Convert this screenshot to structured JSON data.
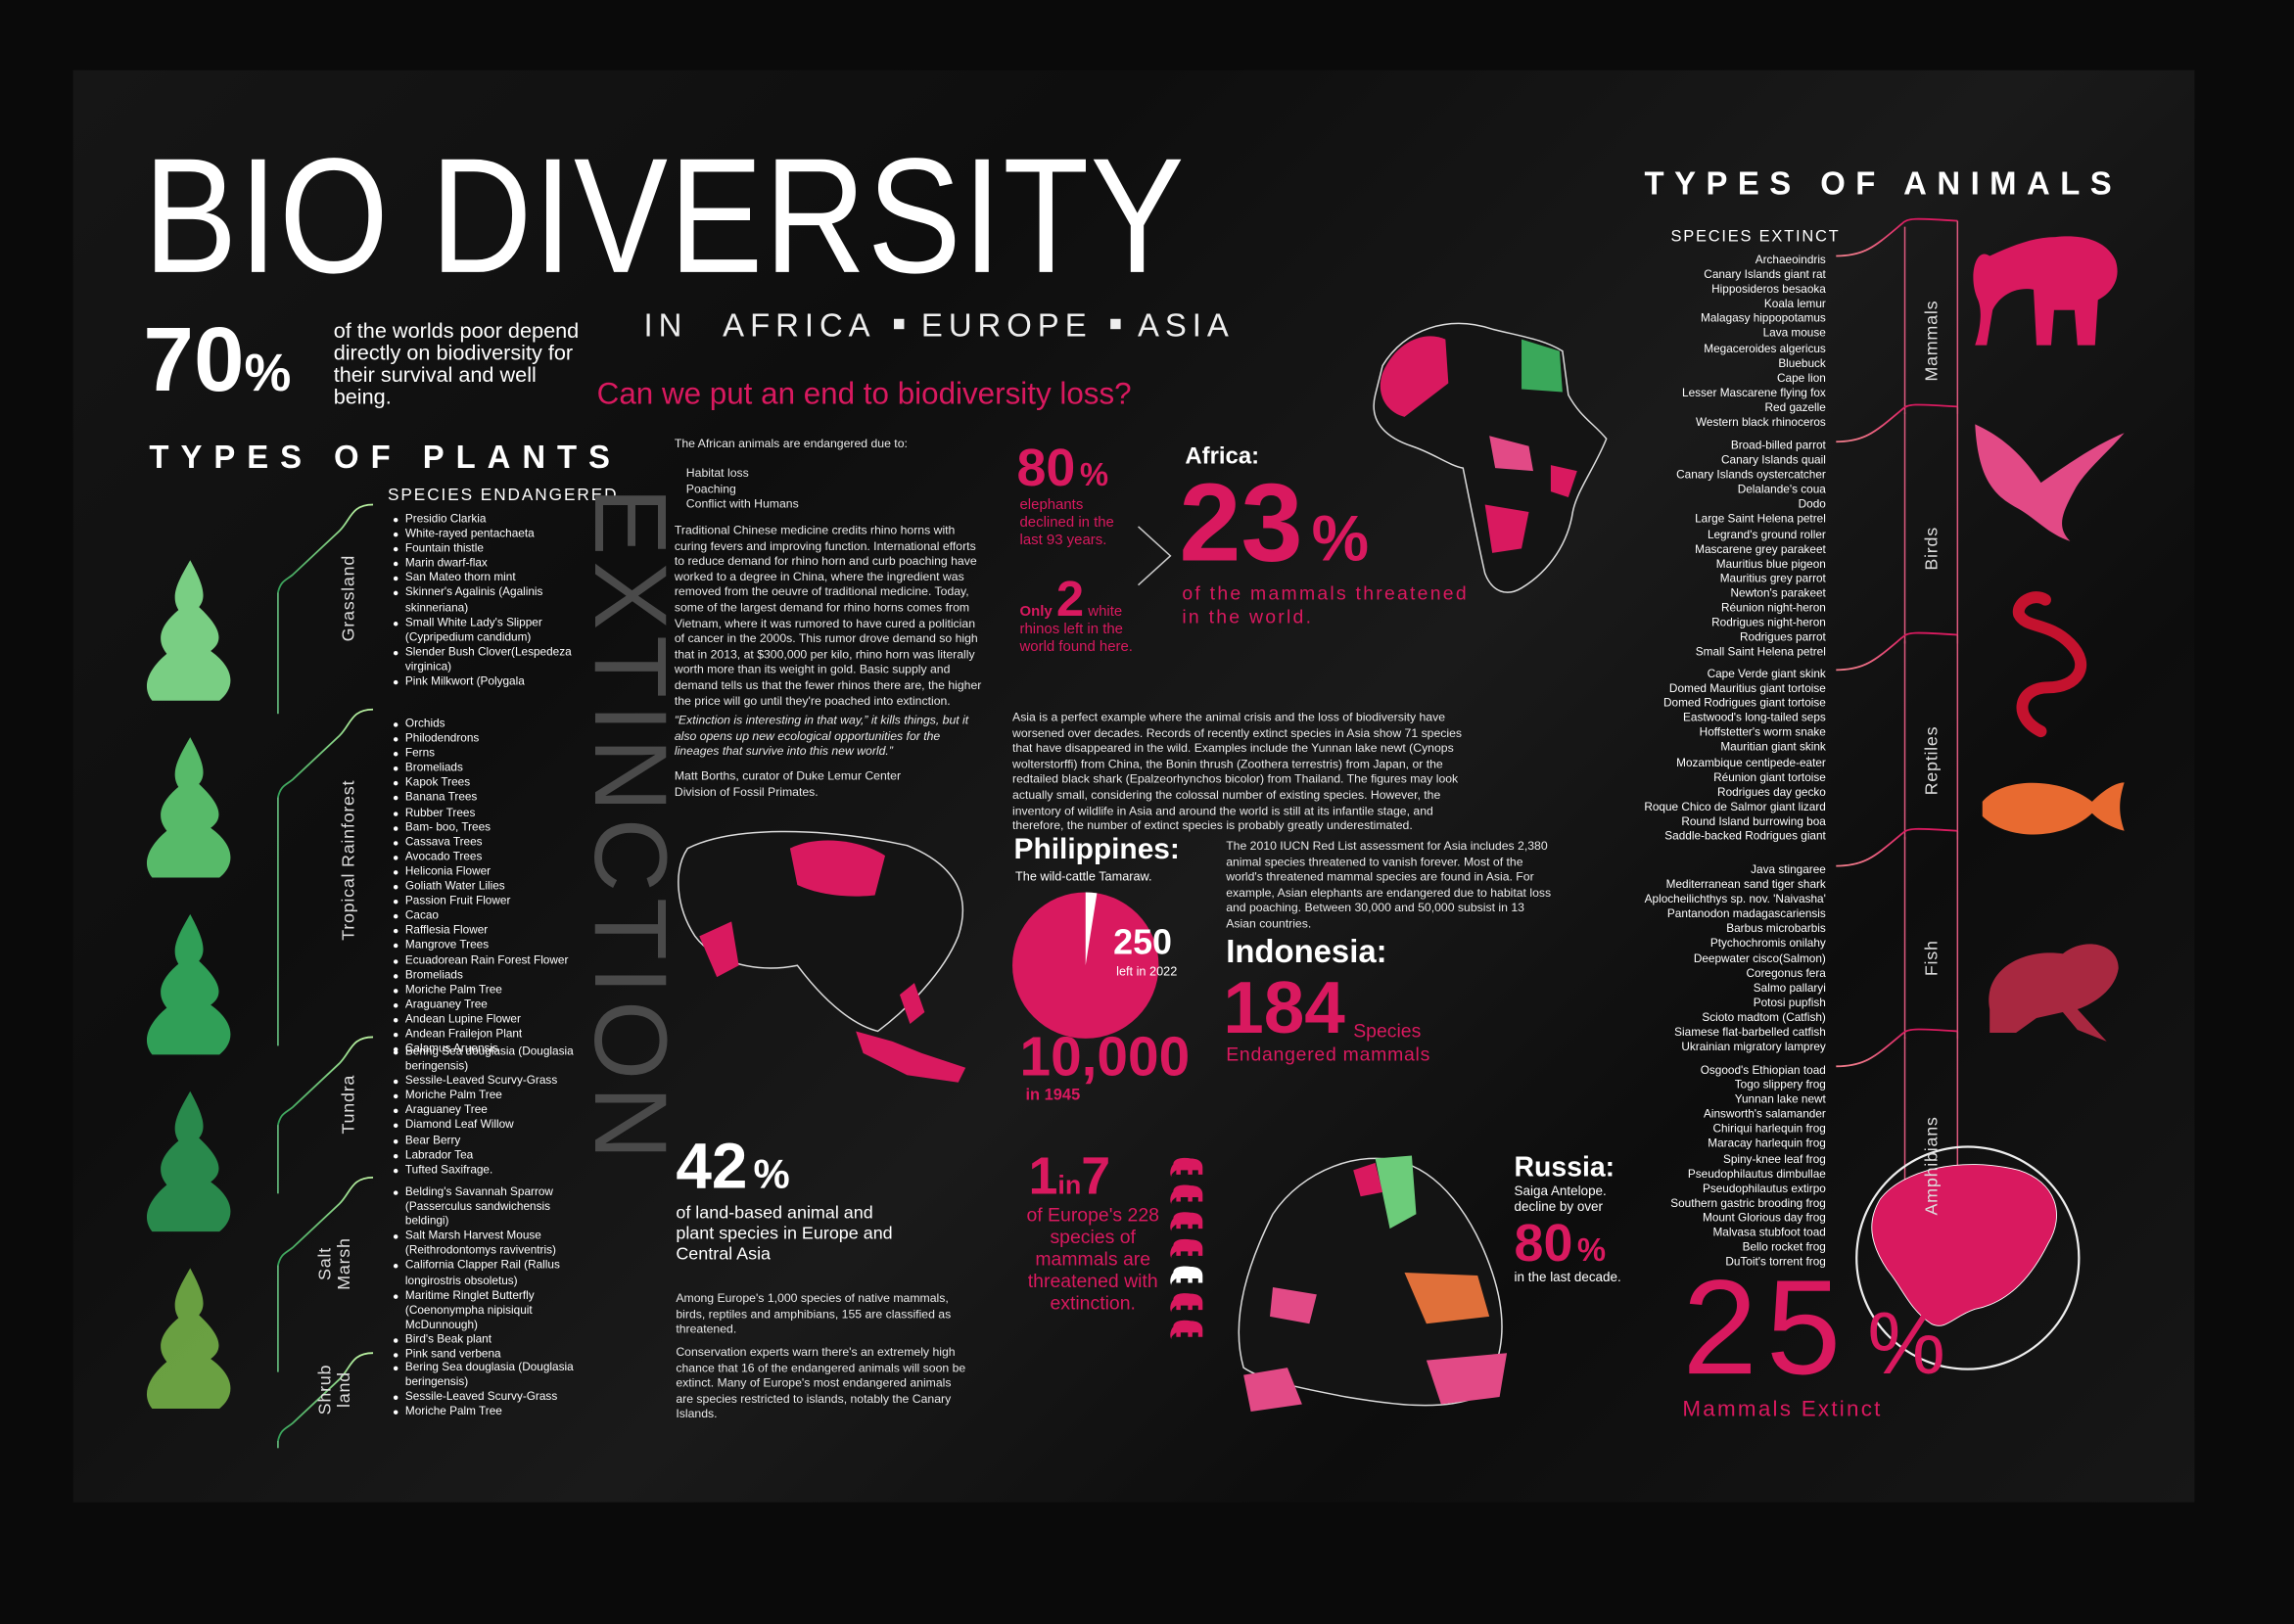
{
  "header": {
    "title": "BIO DIVERSITY",
    "subtitle_prefix": "IN",
    "regions": [
      "AFRICA",
      "EUROPE",
      "ASIA"
    ],
    "question": "Can we put an end to biodiversity loss?"
  },
  "poor_stat": {
    "value": 70,
    "unit": "%",
    "text": "of the worlds poor depend directly on biodiversity for their survival and well being."
  },
  "plants": {
    "heading": "TYPES OF PLANTS",
    "subheading": "SPECIES ENDANGERED",
    "groups": [
      {
        "name": "Grassland",
        "species": [
          "Presidio Clarkia",
          "White-rayed pentachaeta",
          "Fountain thistle",
          "Marin dwarf-flax",
          "San Mateo thorn mint",
          "Skinner's Agalinis (Agalinis skinneriana)",
          "Small White Lady's Slipper (Cypripedium candidum)",
          "Slender Bush Clover(Lespedeza virginica)",
          "Pink Milkwort (Polygala"
        ]
      },
      {
        "name": "Tropical Rainforest",
        "species": [
          "Orchids",
          "Philodendrons",
          "Ferns",
          "Bromeliads",
          "Kapok Trees",
          "Banana Trees",
          "Rubber Trees",
          "Bam- boo, Trees",
          "Cassava Trees",
          "Avocado Trees",
          "Heliconia Flower",
          "Goliath Water Lilies",
          "Passion Fruit Flower",
          "Cacao",
          "Rafflesia Flower",
          "Mangrove Trees",
          "Ecuadorean Rain Forest Flower",
          "Bromeliads",
          "Moriche Palm Tree",
          "Araguaney Tree",
          "Andean Lupine Flower",
          "Andean Frailejon Plant",
          "Calamus Aruensis"
        ]
      },
      {
        "name": "Tundra",
        "species": [
          "Bering Sea douglasia (Douglasia beringensis)",
          "Sessile-Leaved Scurvy-Grass",
          "Moriche Palm Tree",
          "Araguaney Tree",
          "Diamond Leaf Willow",
          "Bear Berry",
          "Labrador Tea",
          "Tufted Saxifrage."
        ]
      },
      {
        "name": "Salt Marsh",
        "species": [
          "Belding's Savannah Sparrow (Passerculus sandwichensis beldingi)",
          "Salt Marsh Harvest Mouse (Reithrodontomys raviventris)",
          "California Clapper Rail (Rallus longirostris obsoletus)",
          "Maritime Ringlet Butterfly (Coenonympha nipisiquit McDunnough)",
          "Bird's Beak plant",
          "Pink sand verbena"
        ]
      },
      {
        "name": "Shrub land",
        "species": [
          "Bering Sea douglasia (Douglasia beringensis)",
          "Sessile-Leaved Scurvy-Grass",
          "Moriche Palm Tree"
        ]
      }
    ]
  },
  "africa_text": {
    "intro": "The African animals are endangered due to:",
    "causes": [
      "Habitat loss",
      "Poaching",
      "Conflict with Humans"
    ],
    "paragraph": "Traditional Chinese medicine credits rhino horns with curing fevers and improving function. International efforts to reduce demand for rhino horn and curb poaching have worked to a degree in China, where the ingredient was removed from the oeuvre of traditional medicine. Today, some of the largest demand for rhino horns comes from Vietnam, where it was rumored to have cured a politician of cancer in the 2000s. This rumor drove demand so high that in 2013, at $300,000 per kilo, rhino horn was literally worth more than its weight in gold. Basic supply and demand tells us that the fewer rhinos there are, the higher the price will go until they're poached into extinction.",
    "quote": "“Extinction is interesting in that way,” it kills things, but it also opens up new ecological opportunities for the lineages that survive into this new world.”",
    "attribution": "Matt Borths, curator of Duke Lemur Center Division of Fossil Primates."
  },
  "side_word": "EXTINCTION",
  "elephants": {
    "value": 80,
    "unit": "%",
    "text": "elephants declined in the last 93 years."
  },
  "rhinos": {
    "prefix": "Only",
    "value": 2,
    "text": "white rhinos left in the world found here."
  },
  "africa": {
    "label": "Africa:",
    "value": 23,
    "unit": "%",
    "text": "of the mammals threatened in the world."
  },
  "asia": {
    "paragraph": "Asia is a perfect example where the animal crisis and the loss of biodiversity have worsened over decades. Records of recently extinct species in Asia show 71 species that have disappeared in the wild. Examples include the Yunnan lake newt (Cynops wolterstorffi) from China, the Bonin thrush (Zoothera terrestris) from Japan, or the redtailed black shark (Epalzeorhynchos bicolor) from Thailand. The figures may look actually small, considering the colossal number of existing species. However, the inventory of wildlife in Asia and around the world is still at its infantile stage, and therefore, the number of extinct species is probably greatly underestimated."
  },
  "philippines": {
    "label": "Philippines:",
    "animal": "The wild-cattle Tamaraw.",
    "now": {
      "value": 250,
      "text": "left in 2022"
    },
    "then": {
      "value": 10000,
      "label": "10,000",
      "text": "in 1945"
    }
  },
  "iucn": {
    "paragraph": "The 2010 IUCN Red List assessment for Asia includes 2,380 animal species threatened to vanish forever. Most of the world's threatened mammal species are found in Asia. For example, Asian elephants are endangered due to habitat loss and poaching. Between 30,000 and 50,000 subsist in 13 Asian countries."
  },
  "indonesia": {
    "label": "Indonesia:",
    "value": 184,
    "unit": "Species",
    "text": "Endangered mammals"
  },
  "europe": {
    "value": 42,
    "unit": "%",
    "text": "of land-based animal and plant species in Europe and Central Asia",
    "paragraphs": [
      "Among Europe's 1,000 species of native mammals, birds, reptiles and amphibians, 155 are classified as threatened.",
      "Conservation experts warn there's an extremely high chance that 16 of the endangered animals will soon be extinct. Many of Europe's most endangered animals are species restricted to islands, notably the Canary Islands."
    ]
  },
  "europe_mammals": {
    "value": 1,
    "joiner": "in",
    "total": 7,
    "text": "of Europe's 228 species of mammals are threatened with extinction."
  },
  "russia": {
    "label": "Russia:",
    "animal": "Saiga Antelope. decline by over",
    "value": 80,
    "unit": "%",
    "text": "in the last decade."
  },
  "animals": {
    "heading": "TYPES OF ANIMALS",
    "subheading": "SPECIES EXTINCT",
    "groups": [
      {
        "name": "Mammals",
        "species": [
          "Archaeoindris",
          "Canary Islands giant rat",
          "Hipposideros besaoka",
          "Koala lemur",
          "Malagasy hippopotamus",
          "Lava mouse",
          "Megaceroides algericus",
          "Bluebuck",
          "Cape lion",
          "Lesser Mascarene flying fox",
          "Red gazelle",
          "Western black rhinoceros"
        ]
      },
      {
        "name": "Birds",
        "species": [
          "Broad-billed parrot",
          "Canary Islands quail",
          "Canary Islands oystercatcher",
          "Delalande's coua",
          "Dodo",
          "Large Saint Helena petrel",
          "Legrand's ground roller",
          "Mascarene grey parakeet",
          "Mauritius blue pigeon",
          "Mauritius grey parrot",
          "Newton's parakeet",
          "Réunion night-heron",
          "Rodrigues night-heron",
          "Rodrigues parrot",
          "Small Saint Helena petrel"
        ]
      },
      {
        "name": "Reptiles",
        "species": [
          "Cape Verde giant skink",
          "Domed Mauritius giant tortoise",
          "Domed Rodrigues giant tortoise",
          "Eastwood's long-tailed seps",
          "Hoffstetter's worm snake",
          "Mauritian giant skink",
          "Mozambique centipede-eater",
          "Réunion giant tortoise",
          "Rodrigues day gecko",
          "Roque Chico de Salmor giant lizard",
          "Round Island burrowing boa",
          "Saddle-backed Rodrigues giant"
        ]
      },
      {
        "name": "Fish",
        "species": [
          "Java stingaree",
          "Mediterranean sand tiger shark",
          "Aplocheilichthys sp. nov. 'Naivasha'",
          "Pantanodon madagascariensis",
          "Barbus microbarbis",
          "Ptychochromis onilahy",
          "Deepwater cisco(Salmon)",
          "Coregonus fera",
          "Salmo pallaryi",
          "Potosi pupfish",
          "Scioto madtom (Catfish)",
          "Siamese flat-barbelled catfish",
          "Ukrainian migratory lamprey"
        ]
      },
      {
        "name": "Amphibians",
        "species": [
          "Osgood's Ethiopian toad",
          "Togo slippery frog",
          "Yunnan lake newt",
          "Ainsworth's salamander",
          "Chiriqui harlequin frog",
          "Maracay harlequin frog",
          "Spiny-knee leaf frog",
          "Pseudophilautus dimbullae",
          "Pseudophilautus extirpo",
          "Southern gastric brooding frog",
          "Mount Glorious day frog",
          "Malvasa stubfoot toad",
          "Bello rocket frog",
          "DuToit's torrent frog"
        ]
      }
    ]
  },
  "extinct": {
    "value": 25,
    "unit": "%",
    "text": "Mammals Extinct"
  }
}
